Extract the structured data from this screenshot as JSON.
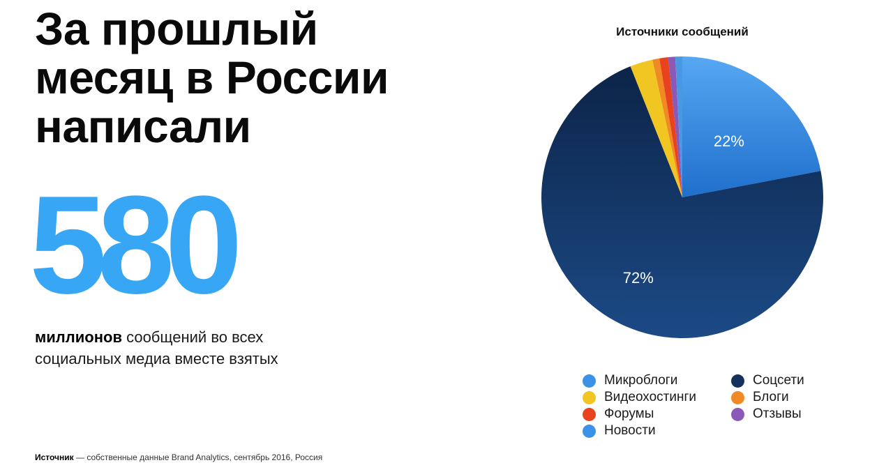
{
  "headline": {
    "line1": "За прошлый",
    "line2": "месяц в России",
    "line3": "написали"
  },
  "big_number": "580",
  "description": {
    "strong": "миллионов",
    "rest": " сообщений во всех социальных медиа вместе взятых"
  },
  "source": {
    "strong": "Источник",
    "rest": " — собственные данные Brand Analytics, сентябрь 2016, Россия"
  },
  "colors": {
    "accent": "#37a6f4"
  },
  "chart_data": {
    "type": "pie",
    "title": "Источники сообщений",
    "legend_position": "bottom",
    "slices": [
      {
        "label": "Микроблоги",
        "value": 22,
        "percent_label": "22%",
        "color": "#3a93e6",
        "show_label": true
      },
      {
        "label": "Соцсети",
        "value": 72,
        "percent_label": "72%",
        "color": "#163a6c",
        "show_label": true
      },
      {
        "label": "Видеохостинги",
        "value": 2.6,
        "percent_label": "",
        "color": "#f2c622",
        "show_label": false
      },
      {
        "label": "Блоги",
        "value": 0.8,
        "percent_label": "",
        "color": "#f08a24",
        "show_label": false
      },
      {
        "label": "Форумы",
        "value": 1.0,
        "percent_label": "",
        "color": "#e8421f",
        "show_label": false
      },
      {
        "label": "Отзывы",
        "value": 0.8,
        "percent_label": "",
        "color": "#8b5ab8",
        "show_label": false
      },
      {
        "label": "Новости",
        "value": 0.8,
        "percent_label": "",
        "color": "#4a98e2",
        "show_label": false
      }
    ],
    "legend": [
      {
        "label": "Микроблоги",
        "color": "#3a93e6"
      },
      {
        "label": "Соцсети",
        "color": "#16325c"
      },
      {
        "label": "Видеохостинги",
        "color": "#f2c622"
      },
      {
        "label": "Блоги",
        "color": "#f08a24"
      },
      {
        "label": "Форумы",
        "color": "#e8421f"
      },
      {
        "label": "Отзывы",
        "color": "#8b5ab8"
      },
      {
        "label": "Новости",
        "color": "#3a93e6"
      }
    ]
  }
}
